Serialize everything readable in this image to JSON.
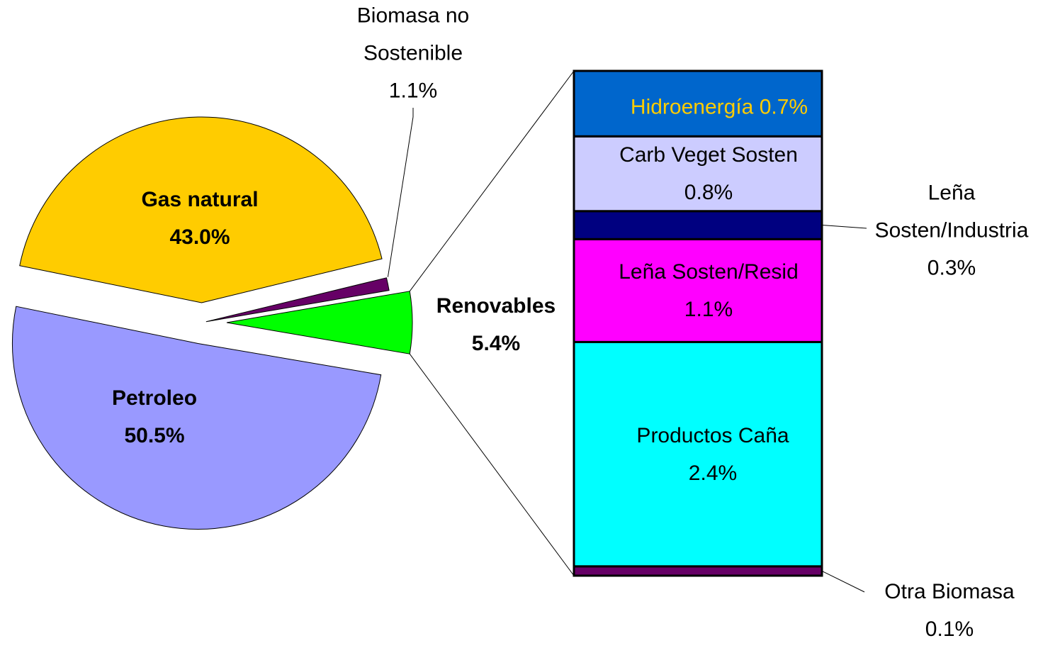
{
  "chart_data": [
    {
      "type": "pie",
      "categories": [
        "Renovables",
        "Biomasa no Sostenible",
        "Gas natural",
        "Petroleo"
      ],
      "values": [
        5.4,
        1.1,
        43.0,
        50.5
      ],
      "value_labels": [
        "5.4%",
        "1.1%",
        "43.0%",
        "50.5%"
      ],
      "colors": [
        "#00FF00",
        "#660066",
        "#FFCC00",
        "#9999FF"
      ]
    },
    {
      "type": "bar",
      "stacked": true,
      "series": [
        {
          "name": "Otra Biomasa",
          "color": "#660066",
          "values": [
            0.1
          ],
          "value_labels": [
            "0.1%"
          ]
        },
        {
          "name": "Productos Caña",
          "color": "#00FFFF",
          "values": [
            2.4
          ],
          "value_labels": [
            "2.4%"
          ]
        },
        {
          "name": "Leña Sosten/Resid",
          "color": "#FF00FF",
          "values": [
            1.1
          ],
          "value_labels": [
            "1.1%"
          ]
        },
        {
          "name": "Leña Sosten/Industria",
          "color": "#000080",
          "values": [
            0.3
          ],
          "value_labels": [
            "0.3%"
          ]
        },
        {
          "name": "Carb Veget Sosten",
          "color": "#CCCCFF",
          "values": [
            0.8
          ],
          "value_labels": [
            "0.8%"
          ]
        },
        {
          "name": "Hidroenergía",
          "color": "#0066CC",
          "values": [
            0.7
          ],
          "value_labels": [
            "0.7%"
          ]
        }
      ]
    }
  ]
}
